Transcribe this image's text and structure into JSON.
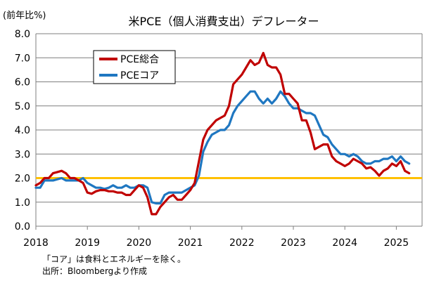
{
  "chart_data": {
    "type": "line",
    "title": "米PCE（個人消費支出）デフレーター",
    "ylabel": "(前年比%)",
    "xlabel": "",
    "ylim": [
      0,
      8
    ],
    "y_ticks": [
      "0.0",
      "1.0",
      "2.0",
      "3.0",
      "4.0",
      "5.0",
      "6.0",
      "7.0",
      "8.0"
    ],
    "x_ticks": [
      "2018",
      "2019",
      "2020",
      "2021",
      "2022",
      "2023",
      "2024",
      "2025"
    ],
    "x_start": "2018-01",
    "x_end": "2025-07",
    "grid": true,
    "legend_position": "top-left",
    "reference_line": {
      "value": 2.0,
      "color": "#FFC000"
    },
    "series": [
      {
        "name": "PCE総合",
        "color": "#C00000",
        "x": [
          "2018-01",
          "2018-02",
          "2018-03",
          "2018-04",
          "2018-05",
          "2018-06",
          "2018-07",
          "2018-08",
          "2018-09",
          "2018-10",
          "2018-11",
          "2018-12",
          "2019-01",
          "2019-02",
          "2019-03",
          "2019-04",
          "2019-05",
          "2019-06",
          "2019-07",
          "2019-08",
          "2019-09",
          "2019-10",
          "2019-11",
          "2019-12",
          "2020-01",
          "2020-02",
          "2020-03",
          "2020-04",
          "2020-05",
          "2020-06",
          "2020-07",
          "2020-08",
          "2020-09",
          "2020-10",
          "2020-11",
          "2020-12",
          "2021-01",
          "2021-02",
          "2021-03",
          "2021-04",
          "2021-05",
          "2021-06",
          "2021-07",
          "2021-08",
          "2021-09",
          "2021-10",
          "2021-11",
          "2021-12",
          "2022-01",
          "2022-02",
          "2022-03",
          "2022-04",
          "2022-05",
          "2022-06",
          "2022-07",
          "2022-08",
          "2022-09",
          "2022-10",
          "2022-11",
          "2022-12",
          "2023-01",
          "2023-02",
          "2023-03",
          "2023-04",
          "2023-05",
          "2023-06",
          "2023-07",
          "2023-08",
          "2023-09",
          "2023-10",
          "2023-11",
          "2023-12",
          "2024-01",
          "2024-02",
          "2024-03",
          "2024-04",
          "2024-05",
          "2024-06",
          "2024-07",
          "2024-08",
          "2024-09",
          "2024-10",
          "2024-11",
          "2024-12",
          "2025-01",
          "2025-02",
          "2025-03",
          "2025-04"
        ],
        "values": [
          1.7,
          1.8,
          2.0,
          2.0,
          2.2,
          2.25,
          2.3,
          2.2,
          2.0,
          2.0,
          1.9,
          1.8,
          1.4,
          1.35,
          1.45,
          1.5,
          1.5,
          1.45,
          1.45,
          1.4,
          1.4,
          1.3,
          1.3,
          1.5,
          1.7,
          1.6,
          1.2,
          0.5,
          0.5,
          0.8,
          1.0,
          1.2,
          1.3,
          1.1,
          1.1,
          1.3,
          1.5,
          1.8,
          2.7,
          3.6,
          4.0,
          4.2,
          4.4,
          4.5,
          4.6,
          5.0,
          5.9,
          6.1,
          6.3,
          6.6,
          6.9,
          6.7,
          6.8,
          7.2,
          6.7,
          6.6,
          6.6,
          6.3,
          5.5,
          5.5,
          5.3,
          5.1,
          4.4,
          4.4,
          3.9,
          3.2,
          3.3,
          3.4,
          3.4,
          2.9,
          2.7,
          2.6,
          2.5,
          2.6,
          2.8,
          2.7,
          2.6,
          2.4,
          2.45,
          2.3,
          2.1,
          2.3,
          2.4,
          2.6,
          2.5,
          2.7,
          2.3,
          2.2
        ]
      },
      {
        "name": "PCEコア",
        "color": "#1F77C1",
        "x": [
          "2018-01",
          "2018-02",
          "2018-03",
          "2018-04",
          "2018-05",
          "2018-06",
          "2018-07",
          "2018-08",
          "2018-09",
          "2018-10",
          "2018-11",
          "2018-12",
          "2019-01",
          "2019-02",
          "2019-03",
          "2019-04",
          "2019-05",
          "2019-06",
          "2019-07",
          "2019-08",
          "2019-09",
          "2019-10",
          "2019-11",
          "2019-12",
          "2020-01",
          "2020-02",
          "2020-03",
          "2020-04",
          "2020-05",
          "2020-06",
          "2020-07",
          "2020-08",
          "2020-09",
          "2020-10",
          "2020-11",
          "2020-12",
          "2021-01",
          "2021-02",
          "2021-03",
          "2021-04",
          "2021-05",
          "2021-06",
          "2021-07",
          "2021-08",
          "2021-09",
          "2021-10",
          "2021-11",
          "2021-12",
          "2022-01",
          "2022-02",
          "2022-03",
          "2022-04",
          "2022-05",
          "2022-06",
          "2022-07",
          "2022-08",
          "2022-09",
          "2022-10",
          "2022-11",
          "2022-12",
          "2023-01",
          "2023-02",
          "2023-03",
          "2023-04",
          "2023-05",
          "2023-06",
          "2023-07",
          "2023-08",
          "2023-09",
          "2023-10",
          "2023-11",
          "2023-12",
          "2024-01",
          "2024-02",
          "2024-03",
          "2024-04",
          "2024-05",
          "2024-06",
          "2024-07",
          "2024-08",
          "2024-09",
          "2024-10",
          "2024-11",
          "2024-12",
          "2025-01",
          "2025-02",
          "2025-03",
          "2025-04"
        ],
        "values": [
          1.6,
          1.6,
          1.9,
          1.9,
          1.9,
          1.95,
          2.0,
          1.9,
          1.9,
          1.9,
          1.9,
          2.0,
          1.8,
          1.7,
          1.6,
          1.6,
          1.55,
          1.6,
          1.7,
          1.6,
          1.6,
          1.7,
          1.6,
          1.6,
          1.7,
          1.7,
          1.6,
          1.0,
          0.95,
          0.95,
          1.3,
          1.4,
          1.4,
          1.4,
          1.4,
          1.5,
          1.6,
          1.7,
          2.1,
          3.1,
          3.5,
          3.8,
          3.9,
          4.0,
          4.0,
          4.2,
          4.7,
          5.0,
          5.2,
          5.4,
          5.6,
          5.6,
          5.3,
          5.1,
          5.3,
          5.1,
          5.3,
          5.6,
          5.4,
          5.1,
          4.9,
          4.9,
          4.8,
          4.7,
          4.7,
          4.6,
          4.2,
          3.8,
          3.7,
          3.4,
          3.2,
          3.0,
          3.0,
          2.9,
          3.0,
          2.9,
          2.7,
          2.6,
          2.6,
          2.7,
          2.7,
          2.8,
          2.8,
          2.9,
          2.7,
          2.9,
          2.7,
          2.6
        ]
      }
    ]
  },
  "notes": {
    "line1": "「コア」は食料とエネルギーを除く。",
    "line2": "出所：Bloombergより作成"
  }
}
